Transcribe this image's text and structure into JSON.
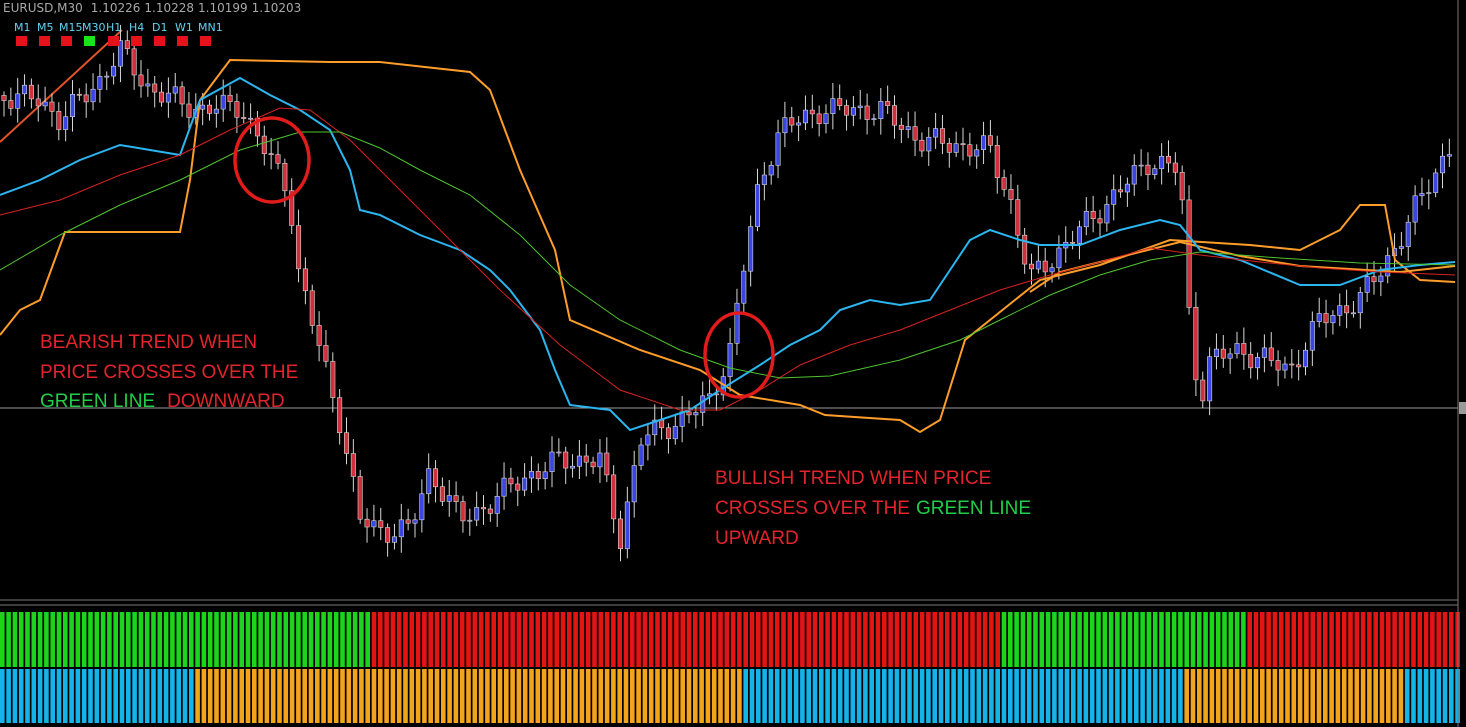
{
  "header": {
    "symbol": "EURUSD,M30",
    "quotes": [
      "1.10226",
      "1.10228",
      "1.10199",
      "1.10203"
    ]
  },
  "timeframes": [
    "M1",
    "M5",
    "M15",
    "M30",
    "H1",
    "H4",
    "D1",
    "W1",
    "MN1"
  ],
  "annotations": {
    "bearish": {
      "line1": "BEARISH TREND WHEN",
      "line2": "PRICE CROSSES OVER THE",
      "line3_green": "GREEN LINE",
      "line3_red": "DOWNWARD"
    },
    "bullish": {
      "line1": "BULLISH TREND WHEN PRICE",
      "line2_red": "CROSSES OVER THE",
      "line2_green": "GREEN LINE",
      "line3": "UPWARD"
    }
  }
}
